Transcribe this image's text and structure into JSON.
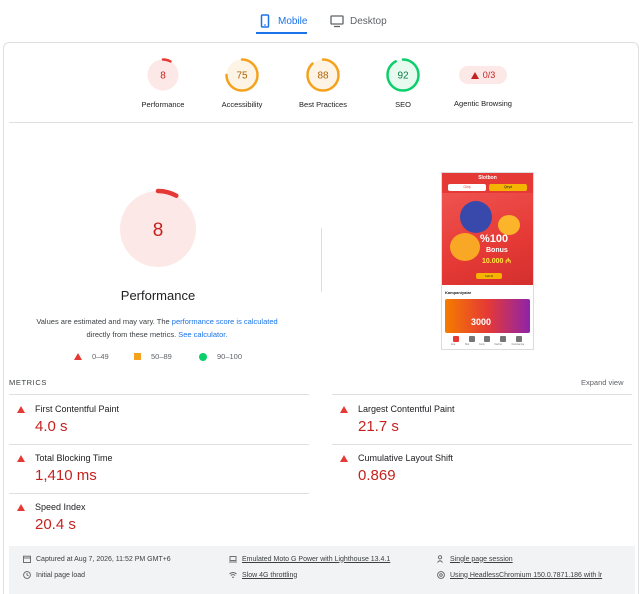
{
  "tabs": {
    "mobile": "Mobile",
    "desktop": "Desktop"
  },
  "scores": {
    "performance": {
      "value": "8",
      "label": "Performance",
      "fraction": 0.08,
      "color": "#e53935",
      "bg": "#fce8e6"
    },
    "accessibility": {
      "value": "75",
      "label": "Accessibility",
      "fraction": 0.75,
      "color": "#f4a21d",
      "bg": "#fef4e6"
    },
    "best_practices": {
      "value": "88",
      "label": "Best Practices",
      "fraction": 0.88,
      "color": "#f4a21d",
      "bg": "#fef4e6"
    },
    "seo": {
      "value": "92",
      "label": "SEO",
      "fraction": 0.92,
      "color": "#0cce6b",
      "bg": "#e6faf0"
    },
    "agentic_browsing": {
      "value": "0/3",
      "label": "Agentic Browsing"
    }
  },
  "main": {
    "score": "8",
    "title": "Performance",
    "desc_prefix": "Values are estimated and may vary. The ",
    "desc_link1": "performance score is calculated",
    "desc_mid": " directly from these metrics. ",
    "desc_link2": "See calculator."
  },
  "legend": {
    "poor": "0–49",
    "average": "50–89",
    "good": "90–100"
  },
  "thumbnail": {
    "logo": "Slotbon",
    "btn1": "Giriş",
    "btn2": "Qeyd",
    "pct": "%100",
    "bonus": "Bonus",
    "amount": "10.000 ₼",
    "cta": "Indi Al",
    "section": "Kampaniyalar",
    "promo": "3000",
    "nav": [
      "Ana",
      "Slot",
      "Canlı",
      "Kazino",
      "Kampaniya"
    ]
  },
  "metrics": {
    "heading": "METRICS",
    "expand": "Expand view",
    "fcp": {
      "name": "First Contentful Paint",
      "value": "4.0 s"
    },
    "lcp": {
      "name": "Largest Contentful Paint",
      "value": "21.7 s"
    },
    "tbt": {
      "name": "Total Blocking Time",
      "value": "1,410 ms"
    },
    "cls": {
      "name": "Cumulative Layout Shift",
      "value": "0.869"
    },
    "si": {
      "name": "Speed Index",
      "value": "20.4 s"
    }
  },
  "footer": {
    "captured": "Captured at Aug 7, 2026, 11:52 PM GMT+6",
    "initial_load": "Initial page load",
    "device": "Emulated Moto G Power with Lighthouse 13.4.1",
    "throttling": "Slow 4G throttling",
    "session": "Single page session",
    "browser": "Using HeadlessChromium 150.0.7871.186 with lr"
  }
}
